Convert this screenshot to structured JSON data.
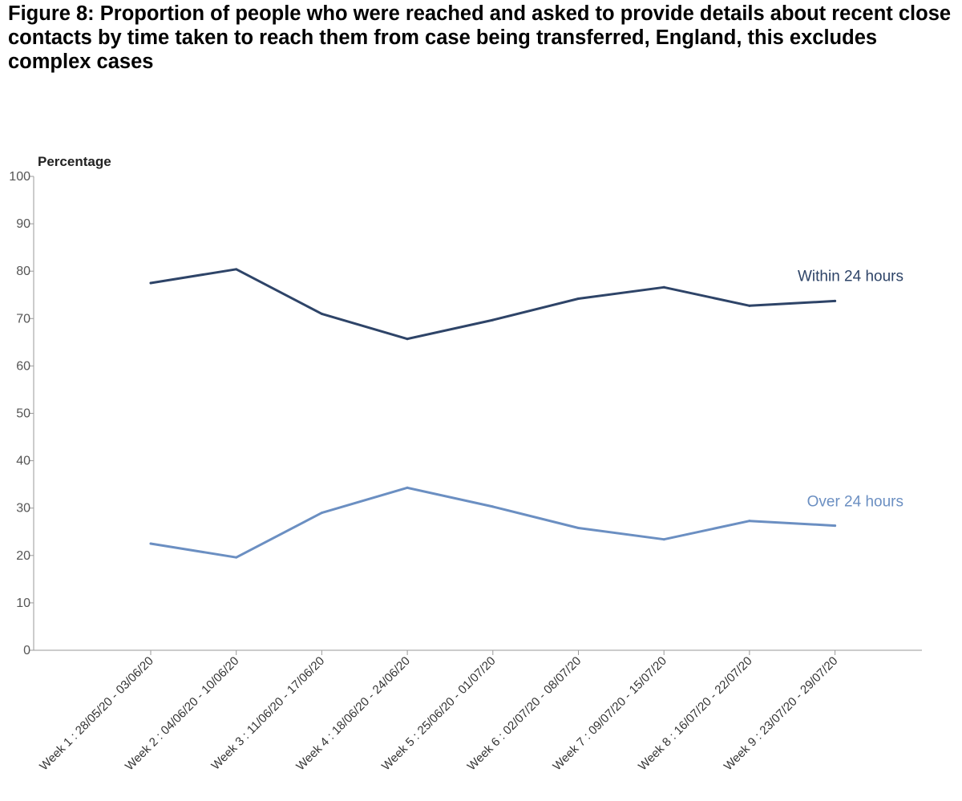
{
  "title": "Figure 8: Proportion of people who were reached and asked to provide details about recent close contacts by time taken to reach them from case being transferred, England, this excludes complex cases",
  "chart_data": {
    "type": "line",
    "title": "Figure 8: Proportion of people who were reached and asked to provide details about recent close contacts by time taken to reach them from case being transferred, England, this excludes complex cases",
    "xlabel": "",
    "ylabel": "Percentage",
    "ylim": [
      0,
      100
    ],
    "yticks": [
      0,
      10,
      20,
      30,
      40,
      50,
      60,
      70,
      80,
      90,
      100
    ],
    "grid": false,
    "categories": [
      "Week 1 : 28/05/20 - 03/06/20",
      "Week 2 : 04/06/20 - 10/06/20",
      "Week 3 : 11/06/20 - 17/06/20",
      "Week 4 : 18/06/20 - 24/06/20",
      "Week 5 : 25/06/20 - 01/07/20",
      "Week 6 : 02/07/20 - 08/07/20",
      "Week 7 : 09/07/20 - 15/07/20",
      "Week 8 : 16/07/20 - 22/07/20",
      "Week 9 : 23/07/20 - 29/07/20"
    ],
    "series": [
      {
        "name": "Within 24 hours",
        "color": "#2e4468",
        "values": [
          77.5,
          80.4,
          71.0,
          65.7,
          69.7,
          74.2,
          76.6,
          72.7,
          73.7
        ]
      },
      {
        "name": "Over 24 hours",
        "color": "#6b8fc2",
        "values": [
          22.5,
          19.6,
          29.0,
          34.3,
          30.3,
          25.8,
          23.4,
          27.3,
          26.3
        ]
      }
    ]
  }
}
